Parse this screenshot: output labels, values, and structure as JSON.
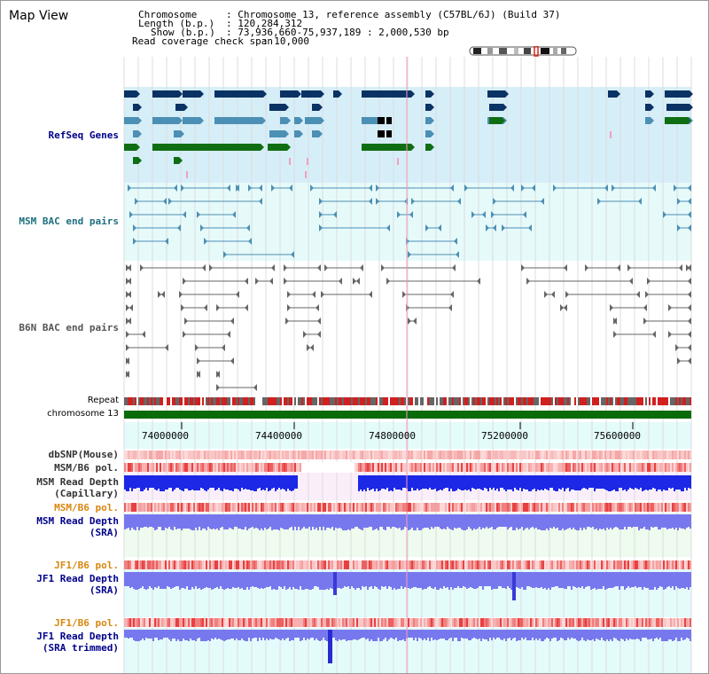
{
  "app": {
    "title": "Map View"
  },
  "info": {
    "chromosome_label": "Chromosome",
    "chromosome_value": ": Chromosome 13, reference assembly (C57BL/6J) (Build 37)",
    "length_label": "Length (b.p.)",
    "length_value": ": 120,284,312",
    "show_label": "Show (b.p.)",
    "show_value": ": 73,936,660-75,937,189 : 2,000,530 bp",
    "coverage_label": "Read coverage check span",
    "coverage_value": ": 10,000"
  },
  "tracks": {
    "refseq": "RefSeq Genes",
    "msm_bac": "MSM BAC end pairs",
    "b6n_bac": "B6N BAC end pairs",
    "repeat": "Repeat",
    "chromosome": "chromosome 13",
    "dbsnp": "dbSNP(Mouse)",
    "msm_b6_pol_1": "MSM/B6 pol.",
    "msm_read_depth_capillary_1": "MSM Read Depth",
    "msm_read_depth_capillary_2": "(Capillary)",
    "msm_b6_pol_2": "MSM/B6 pol.",
    "msm_read_depth_sra_1": "MSM Read Depth",
    "msm_read_depth_sra_2": "(SRA)",
    "jf1_b6_pol_1": "JF1/B6 pol.",
    "jf1_read_depth_sra_1": "JF1 Read Depth",
    "jf1_read_depth_sra_2": "(SRA)",
    "jf1_b6_pol_2": "JF1/B6 pol.",
    "jf1_read_depth_trim_1": "JF1 Read Depth",
    "jf1_read_depth_trim_2": "(SRA trimmed)"
  },
  "axis": {
    "ticks": [
      "74000000",
      "74400000",
      "74800000",
      "75200000",
      "75600000"
    ]
  },
  "colors": {
    "refseq_band": "#d6eef8",
    "bac_band": "#e6fafa",
    "gene_dark": "#0a3264",
    "gene_mid": "#4c8fb4",
    "gene_green": "#0f6e14",
    "chromosome": "#0b6b0b",
    "read_depth_blue": "#1c28e6",
    "sra_blue": "#7878ee",
    "label_navy": "#00008b",
    "label_teal": "#1f6f80",
    "label_orange": "#d9870f"
  }
}
